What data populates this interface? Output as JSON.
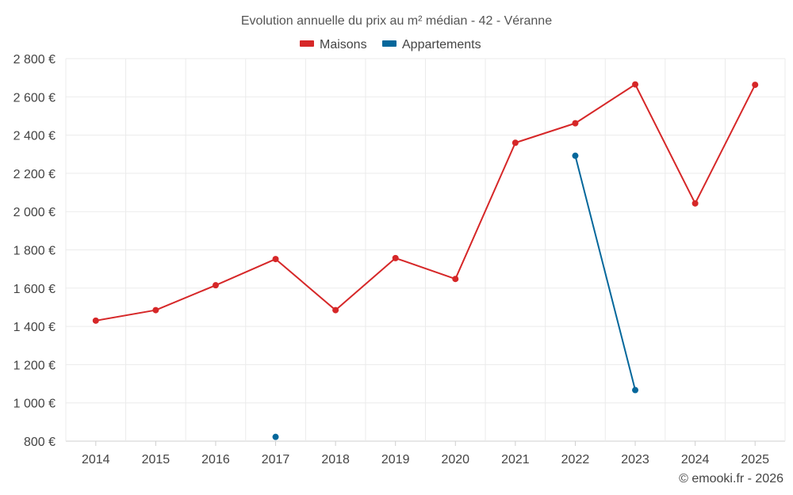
{
  "chart_data": {
    "type": "line",
    "title": "Evolution annuelle du prix au m² médian - 42 - Véranne",
    "categories": [
      "2014",
      "2015",
      "2016",
      "2017",
      "2018",
      "2019",
      "2020",
      "2021",
      "2022",
      "2023",
      "2024",
      "2025"
    ],
    "ylim": [
      800,
      2800
    ],
    "yticks": [
      800,
      1000,
      1200,
      1400,
      1600,
      1800,
      2000,
      2200,
      2400,
      2600,
      2800
    ],
    "ytick_labels": [
      "800 €",
      "1 000 €",
      "1 200 €",
      "1 400 €",
      "1 600 €",
      "1 800 €",
      "2 000 €",
      "2 200 €",
      "2 400 €",
      "2 600 €",
      "2 800 €"
    ],
    "grid": true,
    "legend_position": "top-center",
    "series": [
      {
        "name": "Maisons",
        "color": "#d62728",
        "values": [
          1430,
          1485,
          1615,
          1752,
          1485,
          1757,
          1648,
          2360,
          2462,
          2665,
          2043,
          2663
        ]
      },
      {
        "name": "Appartements",
        "color": "#04679b",
        "values": [
          null,
          null,
          null,
          822,
          null,
          null,
          null,
          null,
          2292,
          1067,
          null,
          null
        ]
      }
    ]
  },
  "credit": "© emooki.fr - 2026"
}
